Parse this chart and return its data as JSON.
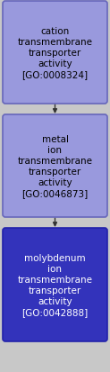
{
  "background_color": "#c8c8c8",
  "nodes": [
    {
      "label": "cation\ntransmembrane\ntransporter\nactivity\n[GO:0008324]",
      "box_color": "#9999dd",
      "edge_color": "#6666bb",
      "text_color": "#000000",
      "fontsize": 7.5
    },
    {
      "label": "metal\nion\ntransmembrane\ntransporter\nactivity\n[GO:0046873]",
      "box_color": "#9999dd",
      "edge_color": "#6666bb",
      "text_color": "#000000",
      "fontsize": 7.5
    },
    {
      "label": "molybdenum\nion\ntransmembrane\ntransporter\nactivity\n[GO:0042888]",
      "box_color": "#3333bb",
      "edge_color": "#2222aa",
      "text_color": "#ffffff",
      "fontsize": 7.5
    }
  ],
  "arrow_color": "#333333",
  "fig_width": 1.23,
  "fig_height": 4.14,
  "dpi": 100
}
